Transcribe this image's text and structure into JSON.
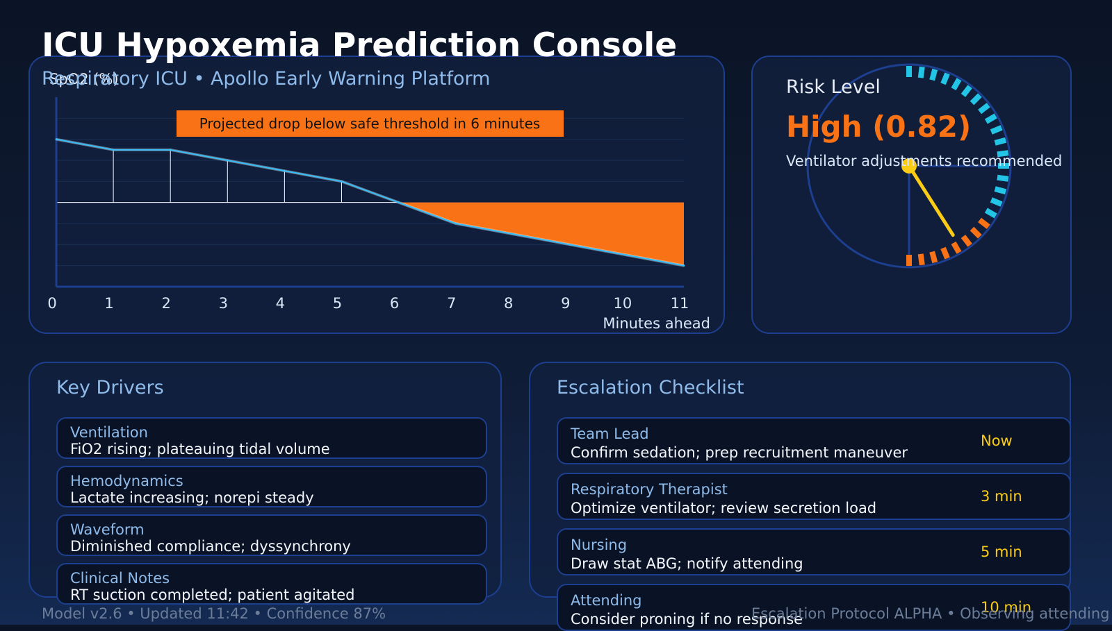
{
  "header": {
    "title": "ICU Hypoxemia Prediction Console",
    "subtitle": "Respiratory ICU • Apollo Early Warning Platform"
  },
  "chart_data": {
    "type": "area",
    "ylabel": "SpO2 (%)",
    "xlabel": "Minutes ahead",
    "x": [
      0,
      1,
      2,
      3,
      4,
      5,
      6,
      7,
      8,
      9,
      10,
      11
    ],
    "x_ticks": [
      "0",
      "1",
      "2",
      "3",
      "4",
      "5",
      "6",
      "7",
      "8",
      "9",
      "10",
      "11"
    ],
    "values": [
      96,
      95,
      95,
      94,
      93,
      92,
      90,
      88,
      87,
      86,
      85,
      84
    ],
    "threshold": 90,
    "ylim": [
      82,
      100
    ],
    "grid": true,
    "annotation": "Projected drop below safe threshold in 6 minutes",
    "colors": {
      "line": "#38bdf8",
      "shortfall": "#f97316",
      "threshold": "#ffffff"
    }
  },
  "risk": {
    "title": "Risk Level",
    "value_label": "High (0.82)",
    "score": 0.82,
    "note": "Ventilator adjustments recommended",
    "colors": {
      "value": "#f97316",
      "high_band": "#f97316",
      "band": "#22c5e6",
      "needle": "#facc15"
    }
  },
  "drivers": {
    "heading": "Key Drivers",
    "items": [
      {
        "title": "Ventilation",
        "detail": "FiO2 rising; plateauing tidal volume"
      },
      {
        "title": "Hemodynamics",
        "detail": "Lactate increasing; norepi steady"
      },
      {
        "title": "Waveform",
        "detail": "Diminished compliance; dyssynchrony"
      },
      {
        "title": "Clinical Notes",
        "detail": "RT suction completed; patient agitated"
      }
    ]
  },
  "escalation": {
    "heading": "Escalation Checklist",
    "items": [
      {
        "role": "Team Lead",
        "action": "Confirm sedation; prep recruitment maneuver",
        "eta": "Now"
      },
      {
        "role": "Respiratory Therapist",
        "action": "Optimize ventilator; review secretion load",
        "eta": "3 min"
      },
      {
        "role": "Nursing",
        "action": "Draw stat ABG; notify attending",
        "eta": "5 min"
      },
      {
        "role": "Attending",
        "action": "Consider proning if no response",
        "eta": "10 min"
      }
    ]
  },
  "footer": {
    "left": "Model v2.6 • Updated 11:42 • Confidence 87%",
    "right": "Escalation Protocol ALPHA • Observing attending"
  }
}
